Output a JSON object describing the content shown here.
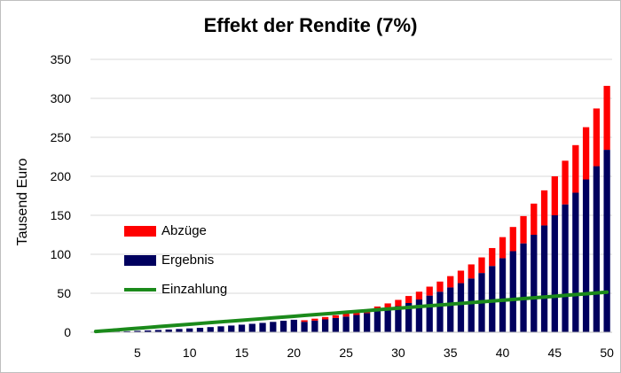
{
  "chart_data": {
    "type": "bar",
    "stacked": true,
    "title": "Effekt der Rendite (7%)",
    "ylabel": "Tausend Euro",
    "xlabel": "",
    "ylim": [
      0,
      350
    ],
    "yticks": [
      0,
      50,
      100,
      150,
      200,
      250,
      300,
      350
    ],
    "xticks": [
      5,
      10,
      15,
      20,
      25,
      30,
      35,
      40,
      45,
      50
    ],
    "grid": true,
    "legend_position": "left",
    "x": [
      1,
      2,
      3,
      4,
      5,
      6,
      7,
      8,
      9,
      10,
      11,
      12,
      13,
      14,
      15,
      16,
      17,
      18,
      19,
      20,
      21,
      22,
      23,
      24,
      25,
      26,
      27,
      28,
      29,
      30,
      31,
      32,
      33,
      34,
      35,
      36,
      37,
      38,
      39,
      40,
      41,
      42,
      43,
      44,
      45,
      46,
      47,
      48,
      49,
      50
    ],
    "series": [
      {
        "name": "Ergebnis",
        "color": "#00005e",
        "values": [
          0.2,
          0.5,
          0.9,
          1.3,
          1.8,
          2.3,
          2.9,
          3.5,
          4.2,
          4.9,
          5.7,
          6.6,
          7.6,
          8.6,
          9.7,
          10.8,
          12.0,
          13.3,
          14.7,
          16.0,
          13.4,
          14.9,
          16.5,
          18.3,
          20.1,
          22.2,
          24.5,
          27.0,
          30.0,
          33.5,
          37.5,
          42.0,
          47.0,
          52.0,
          57.5,
          63.0,
          69.0,
          76.0,
          85.0,
          95.0,
          104.0,
          114.0,
          125.0,
          137.0,
          150.0,
          164.0,
          179.0,
          196.0,
          213.0,
          234.0
        ]
      },
      {
        "name": "Abzüge",
        "color": "#ff0000",
        "values": [
          0,
          0,
          0,
          0,
          0,
          0,
          0,
          0,
          0,
          0,
          0,
          0,
          0,
          0,
          0,
          0,
          0,
          0,
          0,
          0,
          2.0,
          2.5,
          3.0,
          3.5,
          4.0,
          4.5,
          5.0,
          6.0,
          7.0,
          8.0,
          9.0,
          10.0,
          11.5,
          13.0,
          14.5,
          16.0,
          18.0,
          20.0,
          23.0,
          27.0,
          31.0,
          35.0,
          40.0,
          45.0,
          50.0,
          56.0,
          61.0,
          67.0,
          74.0,
          82.0
        ]
      },
      {
        "name": "Einzahlung",
        "type": "line",
        "color": "#1b8a1b",
        "values": [
          1.0,
          2.0,
          3.0,
          4.1,
          5.1,
          6.1,
          7.2,
          8.2,
          9.2,
          10.2,
          11.3,
          12.3,
          13.3,
          14.4,
          15.4,
          16.4,
          17.4,
          18.5,
          19.5,
          20.5,
          21.6,
          22.6,
          23.6,
          24.6,
          25.7,
          26.7,
          27.7,
          28.8,
          29.8,
          30.8,
          31.8,
          32.9,
          33.9,
          34.9,
          36.0,
          37.0,
          38.0,
          39.0,
          40.1,
          41.1,
          42.1,
          43.2,
          44.2,
          45.2,
          46.2,
          47.3,
          48.3,
          49.3,
          50.4,
          51.4
        ]
      }
    ]
  }
}
